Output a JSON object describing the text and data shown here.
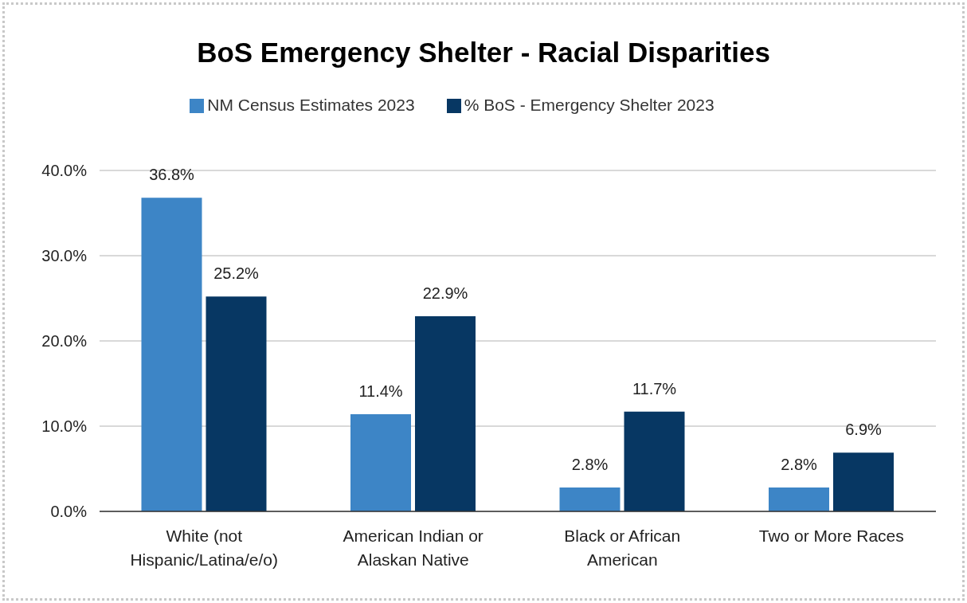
{
  "chart_data": {
    "type": "bar",
    "title": "BoS Emergency Shelter - Racial Disparities",
    "categories": [
      "White (not Hispanic/Latina/e/o)",
      "American Indian or Alaskan Native",
      "Black or African American",
      "Two or More Races"
    ],
    "series": [
      {
        "name": "NM Census Estimates 2023",
        "color": "#3d85c6",
        "values": [
          36.8,
          11.4,
          2.8,
          2.8
        ],
        "value_labels": [
          "36.8%",
          "11.4%",
          "2.8%",
          "2.8%"
        ]
      },
      {
        "name": "% BoS - Emergency Shelter 2023",
        "color": "#073763",
        "values": [
          25.2,
          22.9,
          11.7,
          6.9
        ],
        "value_labels": [
          "25.2%",
          "22.9%",
          "11.7%",
          "6.9%"
        ]
      }
    ],
    "ylim": [
      0,
      40
    ],
    "yticks": [
      {
        "value": 0,
        "label": "0.0%"
      },
      {
        "value": 10,
        "label": "10.0%"
      },
      {
        "value": 20,
        "label": "20.0%"
      },
      {
        "value": 30,
        "label": "30.0%"
      },
      {
        "value": 40,
        "label": "40.0%"
      }
    ],
    "grid": "y",
    "legend": "top"
  }
}
